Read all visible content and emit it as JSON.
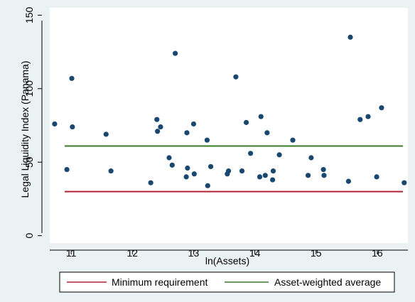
{
  "chart_data": {
    "type": "scatter",
    "xlabel": "ln(Assets)",
    "ylabel": "Legal Liquidity Index (Panama)",
    "xlim": [
      10.65,
      16.5
    ],
    "ylim": [
      -5,
      155
    ],
    "xticks": [
      11,
      12,
      13,
      14,
      15,
      16
    ],
    "yticks": [
      0,
      50,
      100,
      150
    ],
    "grid": false,
    "legend_position": "bottom",
    "points": {
      "color": "#1a476f",
      "x": [
        10.73,
        10.93,
        11.01,
        11.02,
        11.57,
        11.65,
        12.3,
        12.4,
        12.41,
        12.46,
        12.6,
        12.65,
        12.7,
        12.88,
        12.89,
        12.9,
        13.0,
        13.01,
        13.22,
        13.23,
        13.28,
        13.55,
        13.57,
        13.69,
        13.79,
        13.86,
        13.93,
        14.08,
        14.1,
        14.17,
        14.2,
        14.29,
        14.3,
        14.4,
        14.62,
        14.87,
        14.92,
        15.12,
        15.13,
        15.53,
        15.56,
        15.72,
        15.85,
        15.99,
        16.07,
        16.44
      ],
      "y": [
        76,
        45,
        107,
        74,
        69,
        44,
        36,
        79,
        71,
        74,
        53,
        48,
        124,
        40,
        70,
        46,
        76,
        42,
        65,
        34,
        47,
        42,
        44,
        108,
        44,
        77,
        56,
        40,
        81,
        41,
        70,
        38,
        44,
        55,
        65,
        41,
        53,
        45,
        41,
        37,
        135,
        79,
        81,
        40,
        87,
        36
      ]
    },
    "series": [
      {
        "name": "Minimum requirement",
        "type": "hline",
        "y": 30,
        "color": "#b22234"
      },
      {
        "name": "Asset-weighted average",
        "type": "hline",
        "y": 61,
        "color": "#3a7a28"
      }
    ]
  }
}
